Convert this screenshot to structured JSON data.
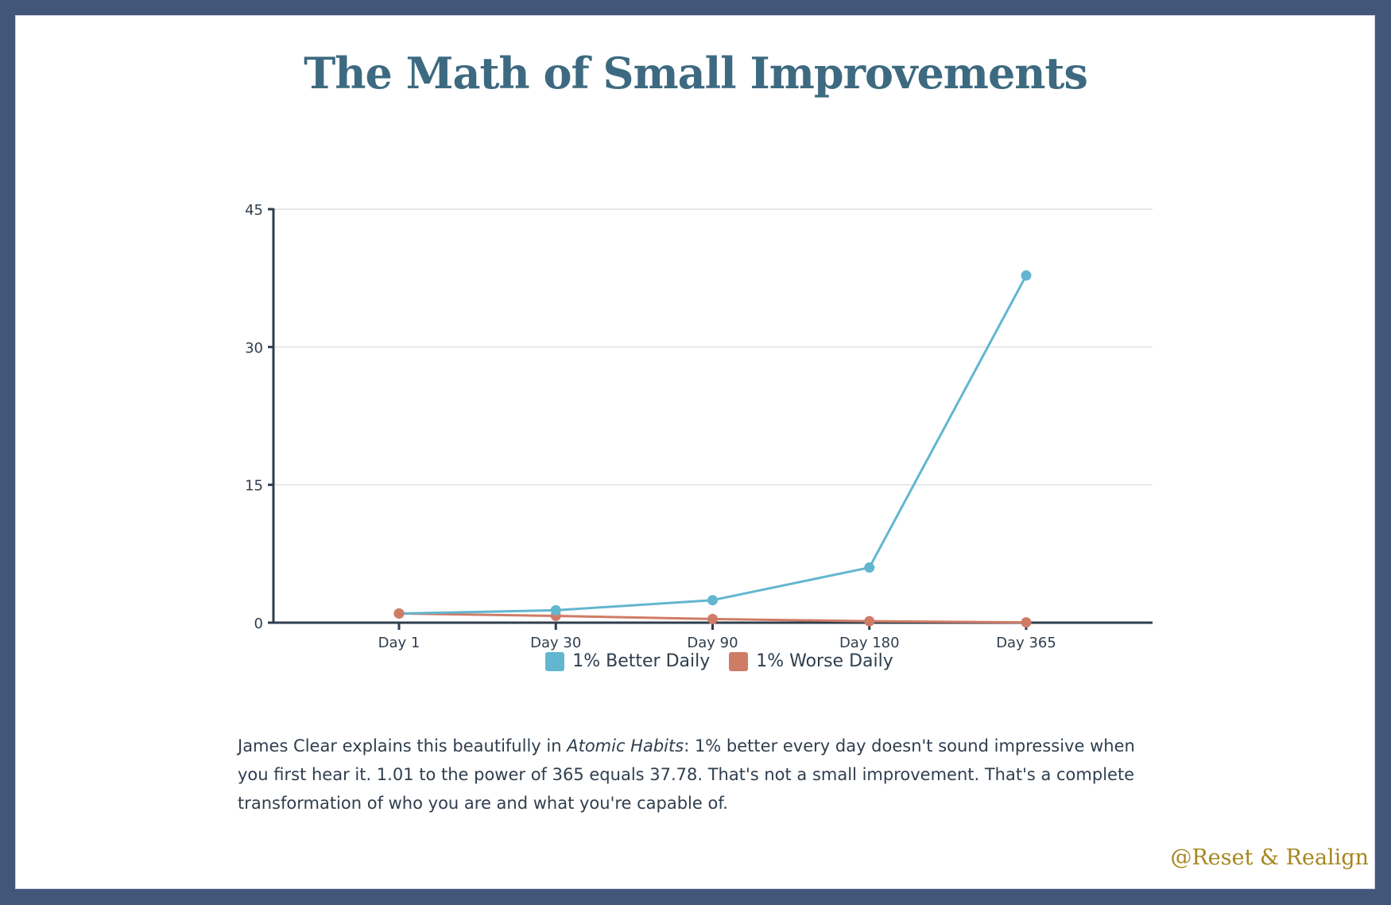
{
  "title": "The Math of Small Improvements",
  "chart_data": {
    "type": "line",
    "title": "",
    "xlabel": "",
    "ylabel": "",
    "categories": [
      "Day 1",
      "Day 30",
      "Day 90",
      "Day 180",
      "Day 365"
    ],
    "series": [
      {
        "name": "1% Better Daily",
        "color": "#62b6cf",
        "values": [
          1.0,
          1.35,
          2.45,
          6.0,
          37.78
        ]
      },
      {
        "name": "1% Worse Daily",
        "color": "#cf7c66",
        "values": [
          1.0,
          0.74,
          0.4,
          0.16,
          0.03
        ]
      }
    ],
    "ylim": [
      0,
      45
    ],
    "yticks": [
      0,
      15,
      30,
      45
    ],
    "ytick_labels": [
      "0",
      "15",
      "30",
      "45"
    ],
    "grid": true,
    "legend_position": "bottom-center"
  },
  "paragraph": {
    "before": "James Clear explains this beautifully in ",
    "book": "Atomic Habits",
    "after": ": 1% better every day doesn't sound impressive when you first hear it. 1.01 to the power of 365 equals 37.78. That's not a small improvement. That's a complete transformation of who you are and what you're capable of."
  },
  "watermark": "@Reset & Realign",
  "colors": {
    "frame": "#42567a",
    "title": "#3d6a80",
    "axis": "#2f3e4e",
    "grid": "#dde1e8",
    "watermark": "#a4861d"
  }
}
